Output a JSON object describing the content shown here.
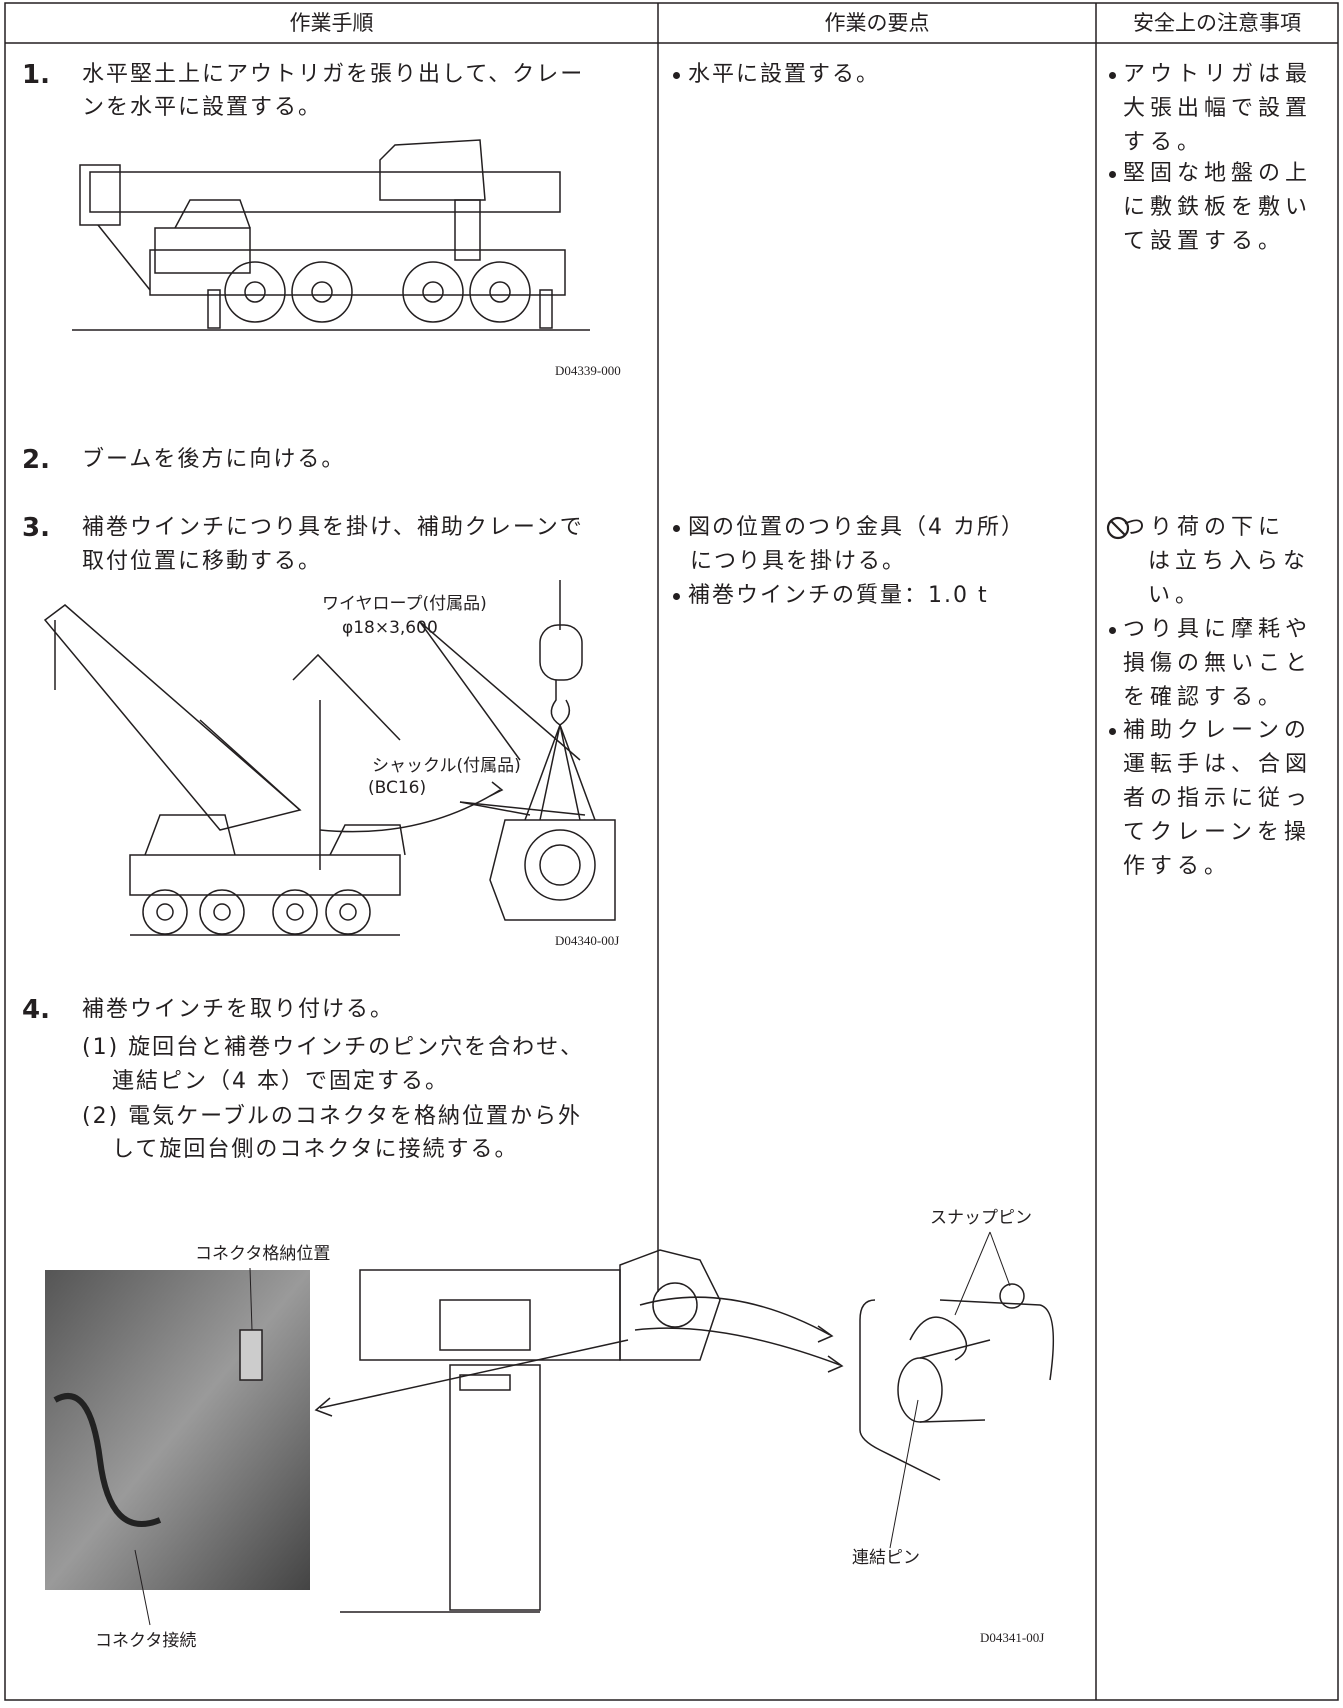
{
  "header": [
    "作業手順",
    "作業の要点",
    "安全上の注意事項"
  ],
  "steps": [
    {
      "number": "1.",
      "lines": [
        "水平堅土上にアウトリガを張り出して、クレー",
        "ンを水平に設置する。"
      ]
    },
    {
      "number": "2.",
      "lines": [
        "ブームを後方に向ける。"
      ]
    },
    {
      "number": "3.",
      "lines": [
        "補巻ウインチにつり具を掛け、補助クレーンで",
        "取付位置に移動する。"
      ]
    },
    {
      "number": "4.",
      "lines": [
        "補巻ウインチを取り付ける。",
        "(1) 旋回台と補巻ウインチのピン穴を合わせ、",
        "連結ピン（4 本）で固定する。",
        "(2) 電気ケーブルのコネクタを格納位置から外",
        "して旋回台側のコネクタに接続する。"
      ]
    }
  ],
  "points": [
    {
      "lines": [
        "水平に設置する。"
      ]
    },
    {
      "lines": [
        "図の位置のつり金具（4 カ所）",
        "につり具を掛ける。"
      ]
    },
    {
      "lines": [
        "補巻ウインチの質量：1.0 t"
      ]
    }
  ],
  "cautions": [
    {
      "lines": [
        "アウトリガは最",
        "大張出幅で設置",
        "する。"
      ]
    },
    {
      "lines": [
        "堅固な地盤の上",
        "に敷鉄板を敷い",
        "て設置する。"
      ]
    },
    {
      "lines": [
        "つり荷の下に",
        "は立ち入らな",
        "い。"
      ]
    },
    {
      "lines": [
        "つり具に摩耗や",
        "損傷の無いこと",
        "を確認する。"
      ]
    },
    {
      "lines": [
        "補助クレーンの",
        "運転手は、合図",
        "者の指示に従っ",
        "てクレーンを操",
        "作する。"
      ]
    }
  ],
  "figures": [
    {
      "id": "D04339-000"
    },
    {
      "id": "D04340-00J",
      "callouts": [
        "ワイヤロープ(付属品)",
        "φ18×3,600",
        "シャックル(付属品)",
        "(BC16)"
      ]
    },
    {
      "id": "D04341-00J",
      "callouts": [
        "コネクタ格納位置",
        "コネクタ接続",
        "スナップピン",
        "連結ピン"
      ]
    }
  ]
}
